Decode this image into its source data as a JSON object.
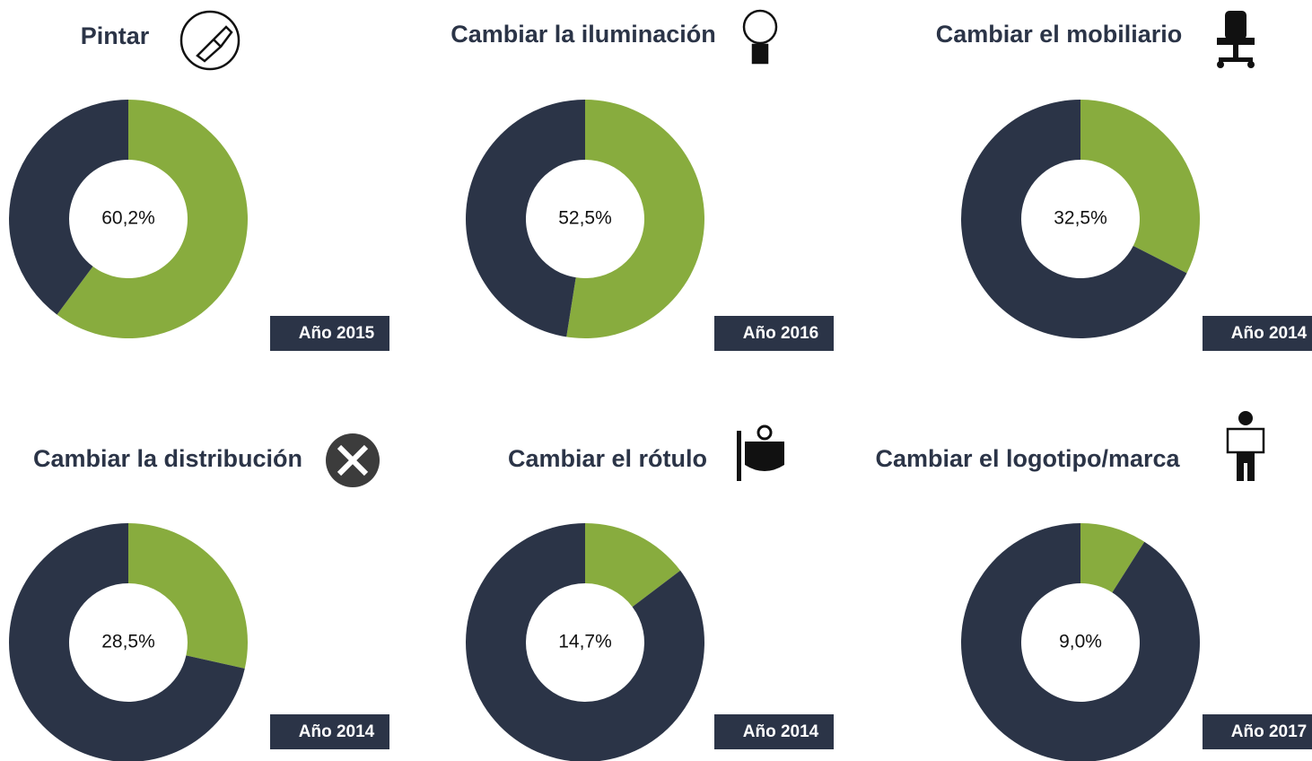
{
  "chart_data": [
    {
      "type": "pie",
      "title": "Pintar",
      "values": [
        60.2,
        39.8
      ],
      "value_labels": [
        "60,2%",
        null
      ],
      "colors": [
        "#88ac3e",
        "#2b3447"
      ],
      "badge": "Año 2015"
    },
    {
      "type": "pie",
      "title": "Cambiar la iluminación",
      "values": [
        52.5,
        47.5
      ],
      "value_labels": [
        "52,5%",
        null
      ],
      "colors": [
        "#88ac3e",
        "#2b3447"
      ],
      "badge": "Año 2016"
    },
    {
      "type": "pie",
      "title": "Cambiar el mobiliario",
      "values": [
        32.5,
        67.5
      ],
      "value_labels": [
        "32,5%",
        null
      ],
      "colors": [
        "#88ac3e",
        "#2b3447"
      ],
      "badge": "Año 2014"
    },
    {
      "type": "pie",
      "title": "Cambiar la distribución",
      "values": [
        28.5,
        71.5
      ],
      "value_labels": [
        "28,5%",
        null
      ],
      "colors": [
        "#88ac3e",
        "#2b3447"
      ],
      "badge": "Año 2014"
    },
    {
      "type": "pie",
      "title": "Cambiar el rótulo",
      "values": [
        14.7,
        85.3
      ],
      "value_labels": [
        "14,7%",
        null
      ],
      "colors": [
        "#88ac3e",
        "#2b3447"
      ],
      "badge": "Año 2014"
    },
    {
      "type": "pie",
      "title": "Cambiar el logotipo/marca",
      "values": [
        9.0,
        91.0
      ],
      "value_labels": [
        "9,0%",
        null
      ],
      "colors": [
        "#88ac3e",
        "#2b3447"
      ],
      "badge": "Año 2017"
    }
  ]
}
